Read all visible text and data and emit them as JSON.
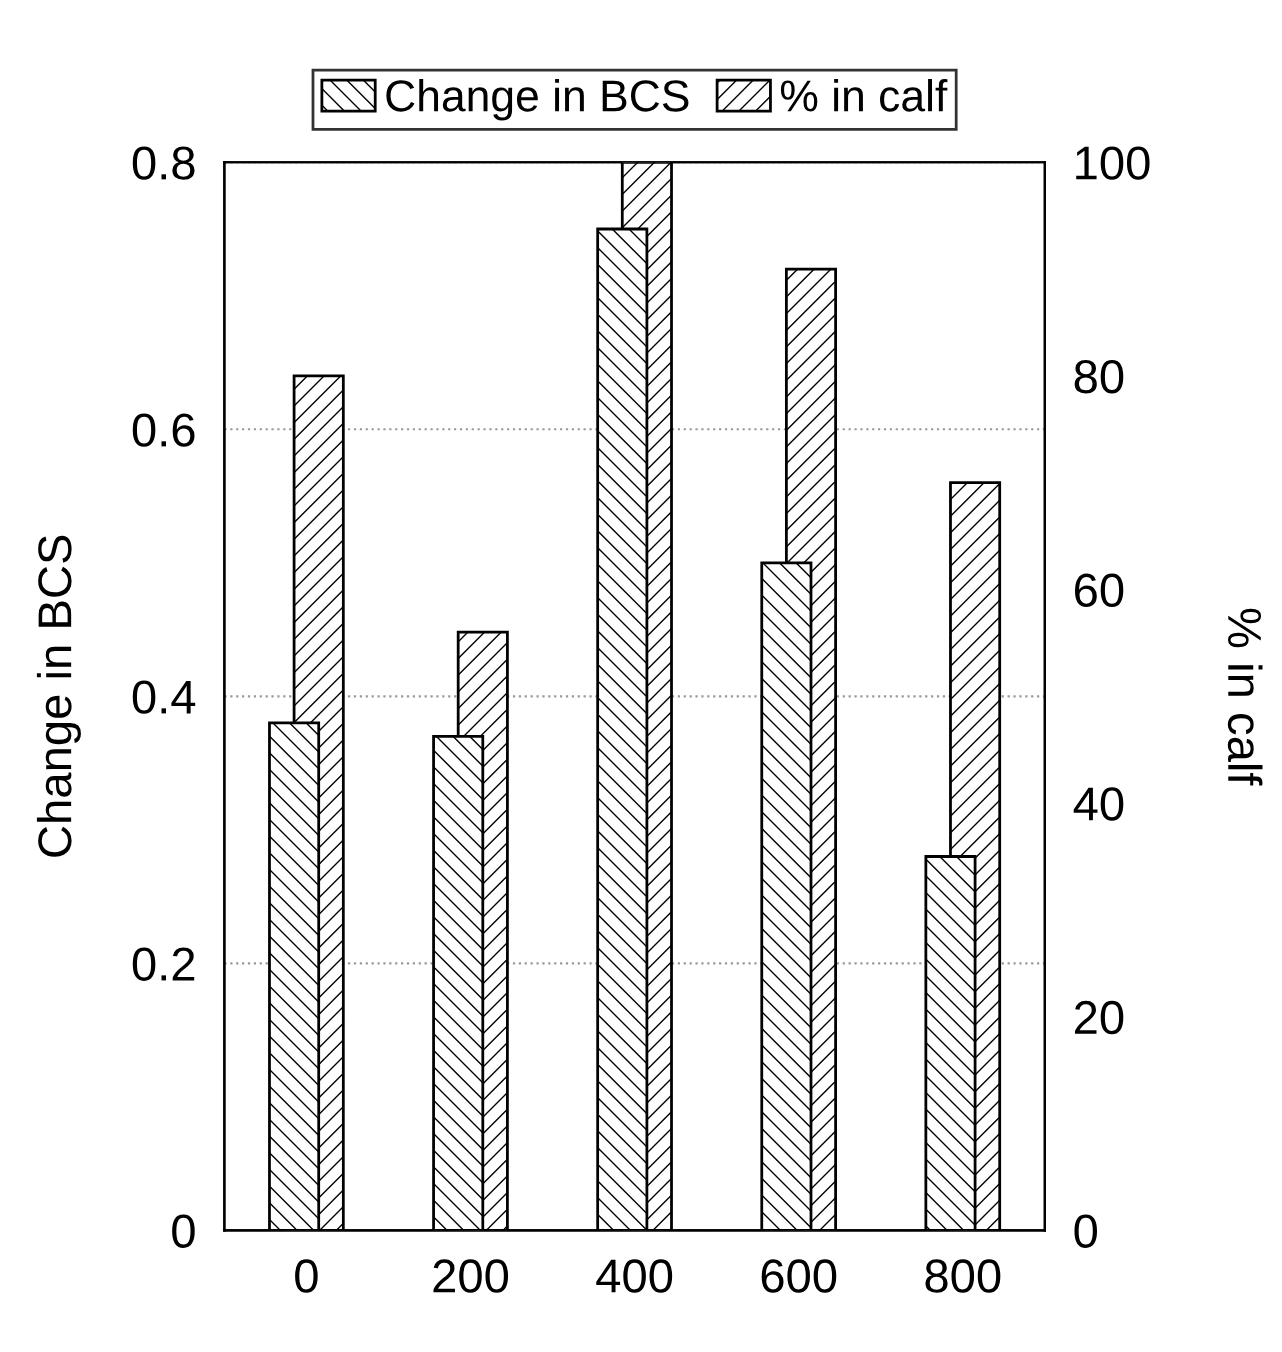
{
  "chart_data": {
    "type": "bar",
    "categories": [
      "0",
      "200",
      "400",
      "600",
      "800"
    ],
    "series": [
      {
        "name": "Change in BCS",
        "color": "#000000",
        "values": [
          0.38,
          0.37,
          0.75,
          0.5,
          0.28
        ]
      },
      {
        "name": "% in calf",
        "color": "#000000",
        "axis": "y2",
        "values": [
          80,
          56,
          100,
          90,
          70
        ]
      }
    ],
    "ylabel": "Change in BCS",
    "y2label": "% in calf",
    "ylim": [
      0,
      0.8
    ],
    "yticks": [
      0,
      0.2,
      0.4,
      0.6,
      0.8
    ],
    "y2lim": [
      0,
      100
    ],
    "y2ticks": [
      0,
      20,
      40,
      60,
      80,
      100
    ],
    "grid": "y",
    "legend": "top"
  }
}
